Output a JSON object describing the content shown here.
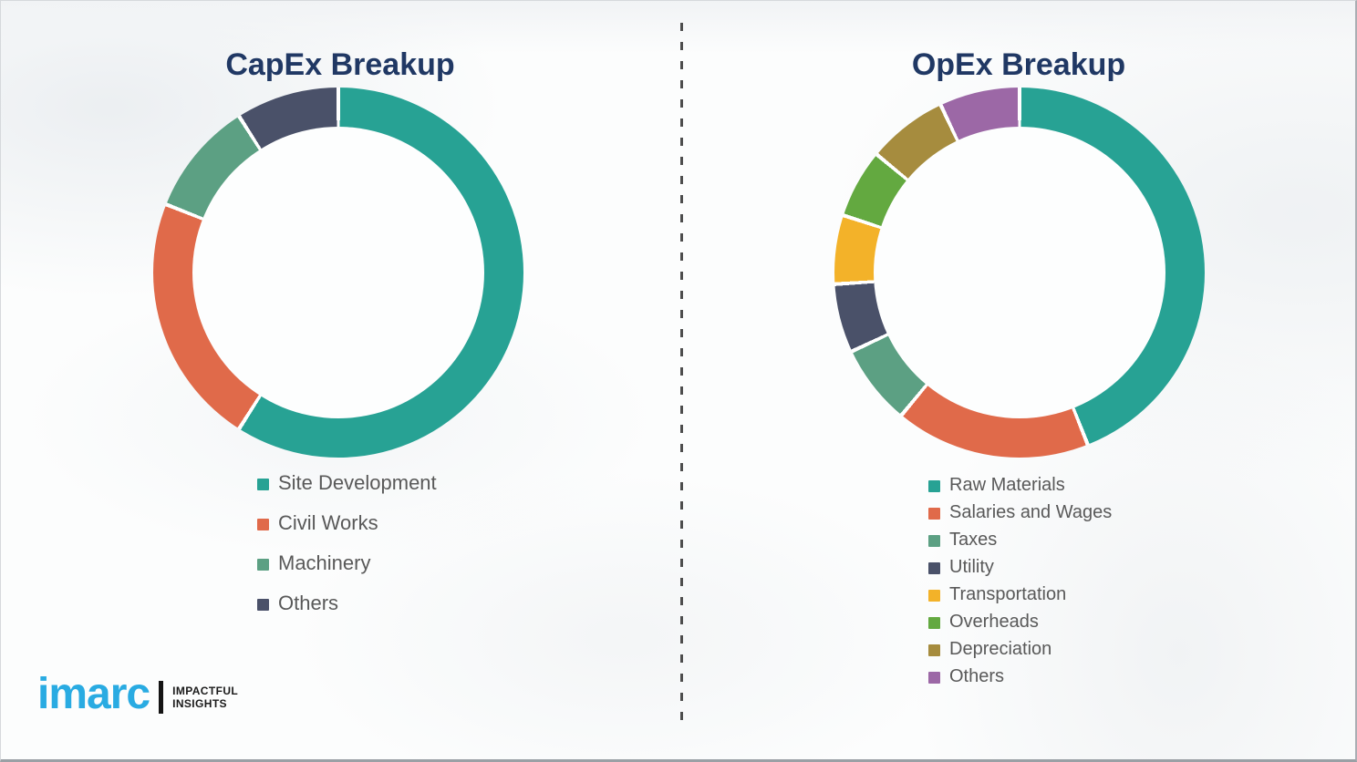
{
  "chart_data": [
    {
      "type": "pie",
      "subtype": "donut",
      "title": "CapEx Breakup",
      "labels": [
        "Site Development",
        "Civil Works",
        "Machinery",
        "Others"
      ],
      "values": [
        59,
        22,
        10,
        9
      ],
      "unit": "percent (estimated, no data labels shown)",
      "colors": [
        "#27A294",
        "#E06A4A",
        "#5CA083",
        "#4A5169"
      ],
      "legend_position": "below-left",
      "legend_marker": "square",
      "start_angle_deg": 0,
      "direction": "clockwise",
      "ring_thickness_ratio": 0.21,
      "segment_gap_color": "#ffffff"
    },
    {
      "type": "pie",
      "subtype": "donut",
      "title": "OpEx Breakup",
      "labels": [
        "Raw Materials",
        "Salaries and Wages",
        "Taxes",
        "Utility",
        "Transportation",
        "Overheads",
        "Depreciation",
        "Others"
      ],
      "values": [
        44,
        17,
        7,
        6,
        6,
        6,
        7,
        7
      ],
      "unit": "percent (estimated, no data labels shown)",
      "colors": [
        "#27A294",
        "#E06A4A",
        "#5CA083",
        "#4A5169",
        "#F3B229",
        "#63A940",
        "#A68C3E",
        "#9C68A6"
      ],
      "legend_position": "below-left",
      "legend_marker": "square",
      "start_angle_deg": 0,
      "direction": "clockwise",
      "ring_thickness_ratio": 0.21,
      "segment_gap_color": "#ffffff"
    }
  ],
  "logo": {
    "wordmark": "imarc",
    "tagline_line1": "IMPACTFUL",
    "tagline_line2": "INSIGHTS"
  },
  "colors": {
    "title_text": "#203864",
    "legend_text": "#595959",
    "divider_dash": "#4d4d4d",
    "logo_blue": "#29ABE2",
    "background": "#fcfdfd"
  }
}
